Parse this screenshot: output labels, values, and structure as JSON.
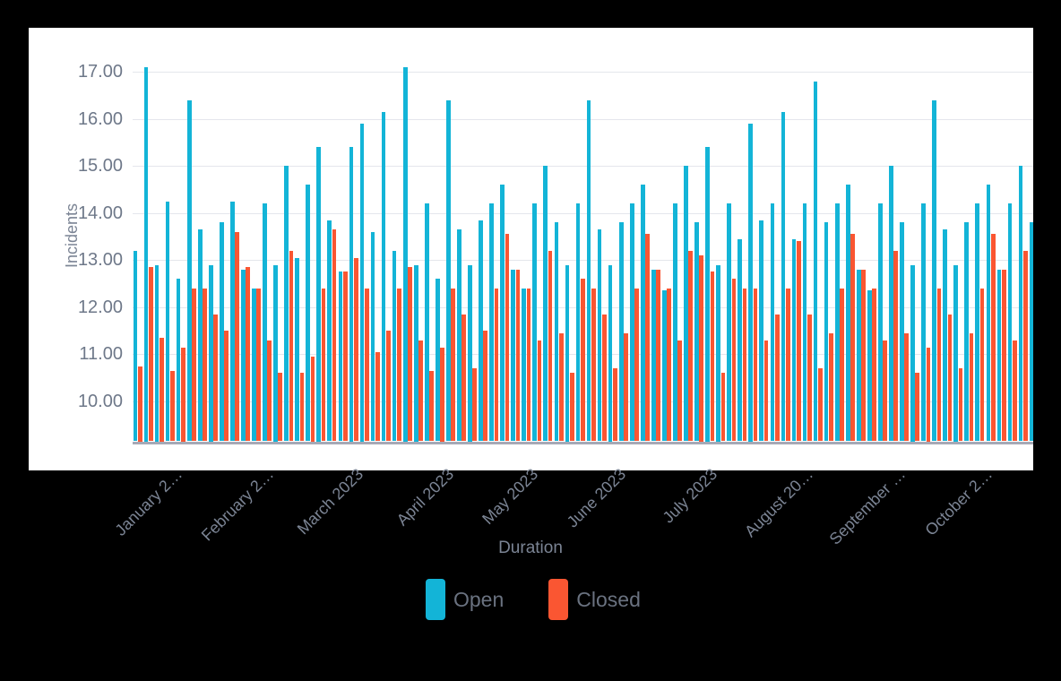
{
  "chart_data": {
    "type": "bar",
    "variant": "grouped-vertical",
    "title": "",
    "xlabel": "Duration",
    "ylabel": "Incidents",
    "y_ticks": [
      "17.00",
      "16.00",
      "15.00",
      "14.00",
      "13.00",
      "12.00",
      "11.00",
      "10.00"
    ],
    "ylim": [
      9.15,
      17.95
    ],
    "grid": "horizontal-only",
    "legend_position": "bottom",
    "x_tick_labels": [
      "January 2…",
      "February 2…",
      "March 2023",
      "April 2023",
      "May 2023",
      "June 2023",
      "July 2023",
      "August 20…",
      "September …",
      "October 2…"
    ],
    "series": [
      {
        "name": "Open",
        "color": "#13b4d7",
        "values": [
          13.2,
          17.1,
          12.9,
          14.25,
          12.6,
          16.4,
          13.65,
          12.9,
          13.8,
          14.25,
          12.8,
          12.4,
          14.2,
          12.9,
          15.0,
          13.05,
          14.6,
          15.4,
          13.85,
          12.75,
          15.4,
          15.9,
          13.6,
          16.15,
          13.2,
          17.1,
          12.9,
          14.2,
          12.6,
          16.4,
          13.65,
          12.9,
          13.85,
          14.2,
          14.6,
          12.8,
          12.4,
          14.2,
          15.0,
          13.8,
          12.9,
          14.2,
          16.4,
          13.65,
          12.9,
          13.8,
          14.2,
          14.6,
          12.8,
          12.35,
          14.2,
          15.0,
          13.8,
          15.4,
          12.9,
          14.2,
          13.45,
          15.9,
          13.85,
          14.2,
          16.15,
          13.45,
          14.2,
          16.8,
          13.8,
          14.2,
          14.6,
          12.8,
          12.35,
          14.2,
          15.0,
          13.8,
          12.9,
          14.2,
          16.4,
          13.65,
          12.9,
          13.8,
          14.2,
          14.6,
          12.8,
          14.2,
          15.0,
          13.8
        ]
      },
      {
        "name": "Closed",
        "color": "#fa5632",
        "values": [
          10.75,
          12.85,
          11.35,
          10.65,
          11.15,
          12.4,
          12.4,
          11.85,
          11.5,
          13.6,
          12.85,
          12.4,
          11.3,
          10.6,
          13.2,
          10.6,
          10.95,
          12.4,
          13.65,
          12.75,
          13.05,
          12.4,
          11.05,
          11.5,
          12.4,
          12.85,
          11.3,
          10.65,
          11.15,
          12.4,
          11.85,
          10.7,
          11.5,
          12.4,
          13.55,
          12.8,
          12.4,
          11.3,
          13.2,
          11.45,
          10.6,
          12.6,
          12.4,
          11.85,
          10.7,
          11.45,
          12.4,
          13.55,
          12.8,
          12.4,
          11.3,
          13.2,
          13.1,
          12.75,
          10.6,
          12.6,
          12.4,
          12.4,
          11.3,
          11.85,
          12.4,
          13.4,
          11.85,
          10.7,
          11.45,
          12.4,
          13.55,
          12.8,
          12.4,
          11.3,
          13.2,
          11.45,
          10.6,
          11.15,
          12.4,
          11.85,
          10.7,
          11.45,
          12.4,
          13.55,
          12.8,
          11.3,
          13.2,
          13.2
        ]
      }
    ]
  },
  "legend": {
    "items": [
      {
        "label": "Open",
        "color": "#13b4d7"
      },
      {
        "label": "Closed",
        "color": "#fa5632"
      }
    ]
  },
  "axis": {
    "x_title": "Duration",
    "y_title": "Incidents"
  },
  "colors": {
    "page_background": "#000000",
    "panel_background": "#ffffff",
    "gridline": "#e4e6ec",
    "axis_line": "#a6a9b6",
    "tick_text": "#6e7889",
    "label_text": "#7b8494",
    "legend_text": "#6a7280"
  }
}
